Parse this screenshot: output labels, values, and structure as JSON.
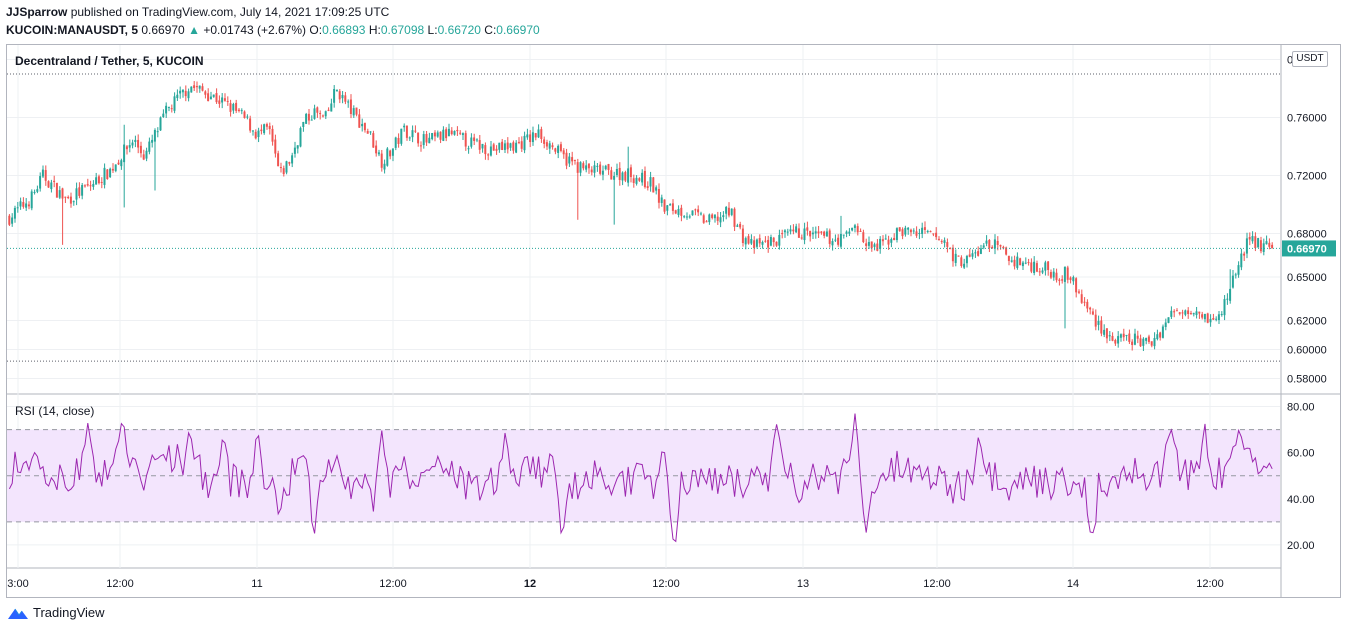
{
  "header": {
    "author": "JJSparrow",
    "published_text": "published on TradingView.com, July 14, 2021 17:09:25 UTC"
  },
  "ohlc_line": {
    "symbol": "KUCOIN:MANAUSDT, 5",
    "last": "0.66970",
    "change": "+0.01743 (+2.67%)",
    "o_label": "O:",
    "o": "0.66893",
    "h_label": "H:",
    "h": "0.67098",
    "l_label": "L:",
    "l": "0.66720",
    "c_label": "C:",
    "c": "0.66970"
  },
  "chart": {
    "title": "Decentraland / Tether, 5, KUCOIN",
    "unit": "USDT",
    "last_price_label": "0.66970",
    "rsi_title": "RSI (14, close)"
  },
  "footer": {
    "brand": "TradingView"
  },
  "colors": {
    "up": "#26a69a",
    "down": "#ef5350",
    "rsi_line": "#9c27b0",
    "rsi_band": "#f3e5fd",
    "grid": "#eef0f3",
    "axis_text": "#131722"
  },
  "chart_data": [
    {
      "type": "candlestick",
      "title": "Decentraland / Tether, 5, KUCOIN",
      "y_ticks": [
        0.58,
        0.6,
        0.62,
        0.65,
        0.68,
        0.72,
        0.76,
        0.8
      ],
      "y_tick_labels": [
        "0.58000",
        "0.60000",
        "0.62000",
        "0.65000",
        "0.68000",
        "0.72000",
        "0.76000",
        "0.80000"
      ],
      "x_tick_labels": [
        "3:00",
        "12:00",
        "11",
        "12:00",
        "12",
        "12:00",
        "13",
        "12:00",
        "14",
        "12:00"
      ],
      "last_price": 0.6697,
      "period_high": 0.79,
      "period_low": 0.592,
      "price_path": [
        [
          0,
          0.691
        ],
        [
          2,
          0.705
        ],
        [
          3,
          0.72
        ],
        [
          5,
          0.703
        ],
        [
          7,
          0.712
        ],
        [
          9,
          0.724
        ],
        [
          11,
          0.745
        ],
        [
          12,
          0.733
        ],
        [
          14,
          0.765
        ],
        [
          16,
          0.782
        ],
        [
          18,
          0.775
        ],
        [
          20,
          0.765
        ],
        [
          21,
          0.758
        ],
        [
          22,
          0.748
        ],
        [
          23,
          0.752
        ],
        [
          24,
          0.72
        ],
        [
          25,
          0.732
        ],
        [
          26,
          0.755
        ],
        [
          27,
          0.764
        ],
        [
          28,
          0.758
        ],
        [
          29,
          0.78
        ],
        [
          30,
          0.768
        ],
        [
          32,
          0.748
        ],
        [
          33,
          0.73
        ],
        [
          34,
          0.738
        ],
        [
          35,
          0.752
        ],
        [
          37,
          0.743
        ],
        [
          39,
          0.749
        ],
        [
          41,
          0.742
        ],
        [
          43,
          0.738
        ],
        [
          45,
          0.741
        ],
        [
          47,
          0.749
        ],
        [
          49,
          0.733
        ],
        [
          51,
          0.724
        ],
        [
          53,
          0.722
        ],
        [
          55,
          0.721
        ],
        [
          57,
          0.714
        ],
        [
          58,
          0.698
        ],
        [
          60,
          0.695
        ],
        [
          62,
          0.688
        ],
        [
          64,
          0.695
        ],
        [
          65,
          0.678
        ],
        [
          66,
          0.671
        ],
        [
          68,
          0.675
        ],
        [
          70,
          0.681
        ],
        [
          72,
          0.677
        ],
        [
          74,
          0.676
        ],
        [
          75,
          0.687
        ],
        [
          76,
          0.671
        ],
        [
          77,
          0.67
        ],
        [
          79,
          0.682
        ],
        [
          81,
          0.68
        ],
        [
          83,
          0.674
        ],
        [
          84,
          0.661
        ],
        [
          85,
          0.662
        ],
        [
          87,
          0.674
        ],
        [
          89,
          0.661
        ],
        [
          91,
          0.658
        ],
        [
          93,
          0.652
        ],
        [
          94,
          0.652
        ],
        [
          95,
          0.635
        ],
        [
          96,
          0.624
        ],
        [
          97,
          0.614
        ],
        [
          98,
          0.605
        ],
        [
          100,
          0.607
        ],
        [
          101,
          0.603
        ],
        [
          102,
          0.612
        ],
        [
          103,
          0.624
        ],
        [
          105,
          0.63
        ],
        [
          107,
          0.618
        ],
        [
          108,
          0.636
        ],
        [
          109,
          0.66
        ],
        [
          110,
          0.676
        ],
        [
          111,
          0.672
        ],
        [
          112,
          0.6697
        ]
      ]
    },
    {
      "type": "line",
      "title": "RSI (14, close)",
      "series": [
        {
          "name": "RSI (14, close)"
        }
      ],
      "y_ticks": [
        20,
        40,
        60,
        80
      ],
      "y_tick_labels": [
        "20.00",
        "40.00",
        "60.00",
        "80.00"
      ],
      "bands": {
        "upper": 70,
        "middle": 50,
        "lower": 30
      },
      "spikes": [
        [
          7,
          74
        ],
        [
          10,
          75
        ],
        [
          16,
          71
        ],
        [
          19,
          69
        ],
        [
          22,
          72
        ],
        [
          26,
          58
        ],
        [
          27,
          20
        ],
        [
          33,
          71
        ],
        [
          44,
          70
        ],
        [
          48,
          60
        ],
        [
          49,
          21
        ],
        [
          58,
          65
        ],
        [
          59,
          17
        ],
        [
          68,
          74
        ],
        [
          70,
          38
        ],
        [
          75,
          77
        ],
        [
          76,
          25
        ],
        [
          86,
          69
        ],
        [
          96,
          20
        ],
        [
          103,
          72
        ],
        [
          106,
          74
        ],
        [
          109,
          70
        ],
        [
          111,
          52
        ]
      ]
    }
  ]
}
